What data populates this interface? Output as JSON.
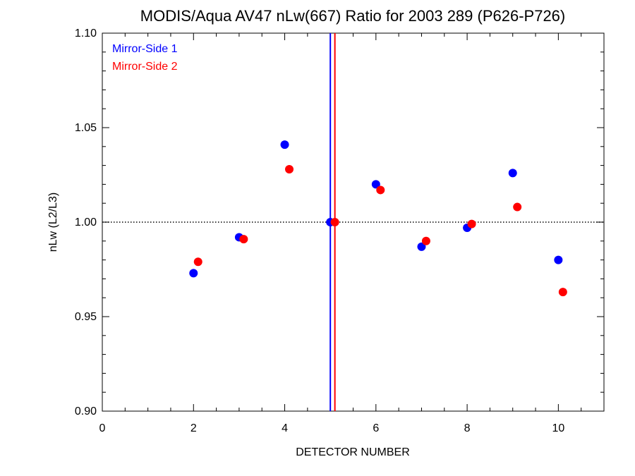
{
  "chart_data": {
    "type": "scatter",
    "title": "MODIS/Aqua AV47 nLw(667) Ratio for 2003 289 (P626-P726)",
    "xlabel": "DETECTOR NUMBER",
    "ylabel": "nLw (L2/L3)",
    "xlim": [
      0,
      11
    ],
    "ylim": [
      0.9,
      1.1
    ],
    "xticks": [
      0,
      2,
      4,
      6,
      8,
      10
    ],
    "yticks": [
      0.9,
      0.95,
      1.0,
      1.05,
      1.1
    ],
    "xtick_labels": [
      "0",
      "2",
      "4",
      "6",
      "8",
      "10"
    ],
    "ytick_labels": [
      "0.90",
      "0.95",
      "1.00",
      "1.05",
      "1.10"
    ],
    "reference_line_y": 1.0,
    "legend_position": "top-left",
    "series": [
      {
        "name": "Mirror-Side 1",
        "color": "#0000ff",
        "x": [
          2,
          3,
          4,
          5,
          6,
          7,
          8,
          9,
          10
        ],
        "y": [
          0.973,
          0.992,
          1.041,
          1.0,
          1.02,
          0.987,
          0.997,
          1.026,
          0.98
        ],
        "vline_x": 5.0
      },
      {
        "name": "Mirror-Side 2",
        "color": "#ff0000",
        "x": [
          2.1,
          3.1,
          4.1,
          5.1,
          6.1,
          7.1,
          8.1,
          9.1,
          10.1
        ],
        "y": [
          0.979,
          0.991,
          1.028,
          1.0,
          1.017,
          0.99,
          0.999,
          1.008,
          0.963
        ],
        "vline_x": 5.1
      }
    ]
  }
}
